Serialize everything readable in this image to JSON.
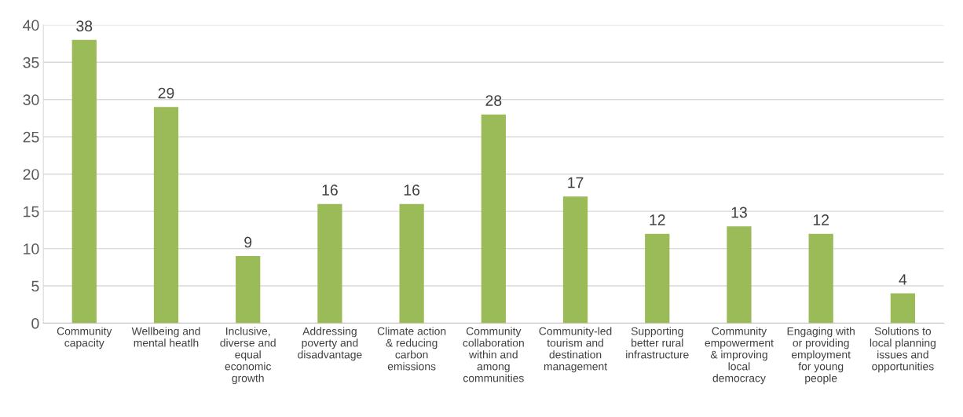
{
  "chart_data": {
    "type": "bar",
    "categories": [
      "Community\ncapacity",
      "Wellbeing and\nmental heatlh",
      "Inclusive,\ndiverse and\nequal\neconomic\ngrowth",
      "Addressing\npoverty and\ndisadvantage",
      "Climate action\n& reducing\ncarbon\nemissions",
      "Community\ncollaboration\nwithin and\namong\ncommunities",
      "Community-led\ntourism and\ndestination\nmanagement",
      "Supporting\nbetter rural\ninfrastructure",
      "Community\nempowerment\n& improving\nlocal\ndemocracy",
      "Engaging with\nor providing\nemployment\nfor young\npeople",
      "Solutions to\nlocal planning\nissues and\nopportunities"
    ],
    "values": [
      38,
      29,
      9,
      16,
      16,
      28,
      17,
      12,
      13,
      12,
      4
    ],
    "color": "#9bbb59",
    "ylim": [
      0,
      40
    ],
    "yticks": [
      0,
      5,
      10,
      15,
      20,
      25,
      30,
      35,
      40
    ],
    "grid": "y",
    "data_labels": true,
    "legend": false
  }
}
